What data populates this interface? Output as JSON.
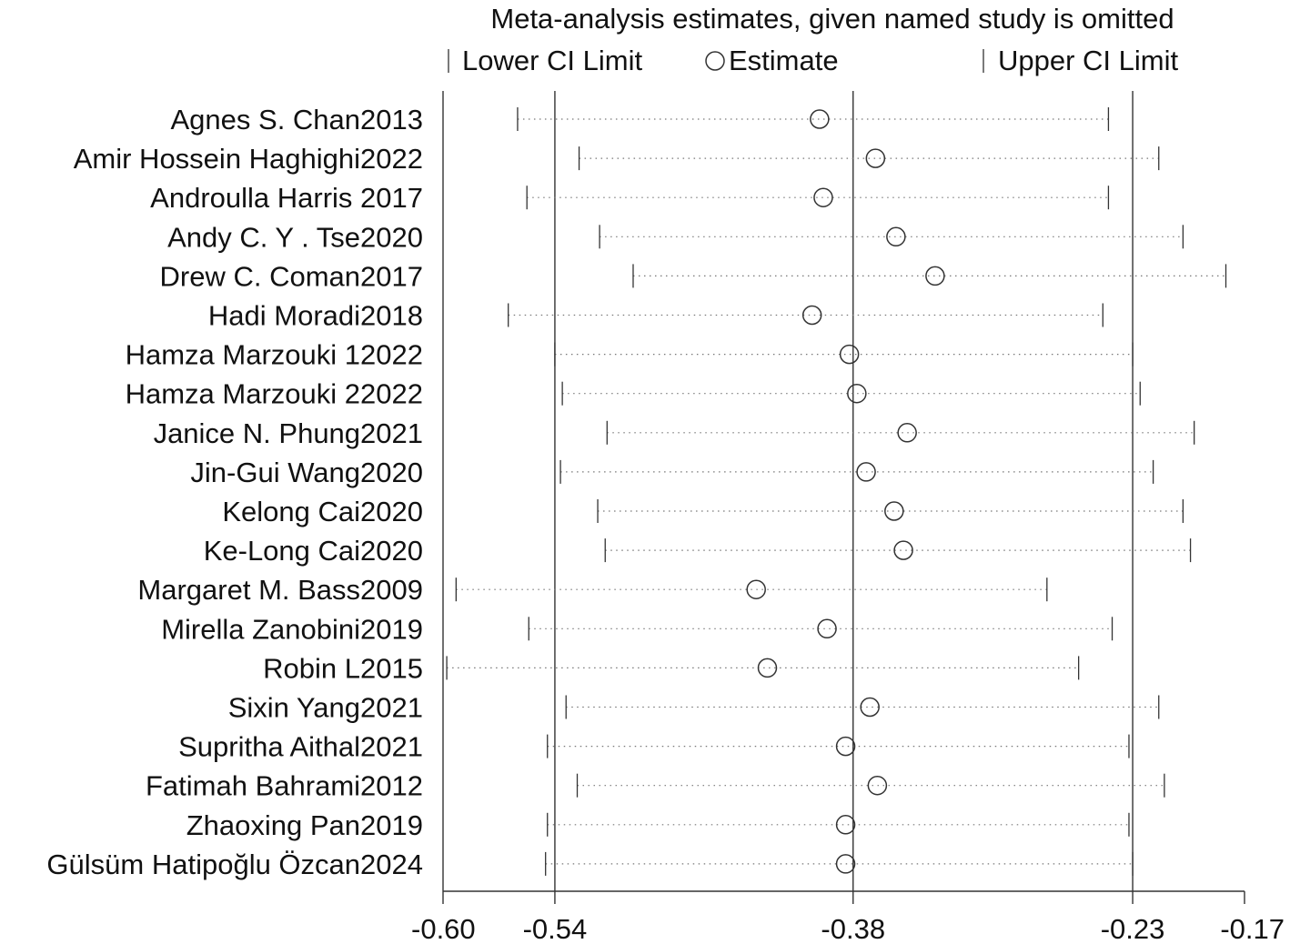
{
  "chart_data": {
    "type": "forest",
    "title": "Meta-analysis estimates, given named study is omitted",
    "legend": {
      "lower": "Lower CI Limit",
      "estimate": "Estimate",
      "upper": "Upper CI Limit",
      "placement": "top"
    },
    "xlim": [
      -0.6,
      -0.17
    ],
    "xticks": [
      {
        "value": -0.6,
        "label": "-0.60"
      },
      {
        "value": -0.54,
        "label": "-0.54"
      },
      {
        "value": -0.38,
        "label": "-0.38"
      },
      {
        "value": -0.23,
        "label": "-0.23"
      },
      {
        "value": -0.17,
        "label": "-0.17"
      }
    ],
    "reference_lines": [
      -0.54,
      -0.38,
      -0.23
    ],
    "studies": [
      {
        "label": "Agnes S. Chan2013",
        "lower": -0.56,
        "estimate": -0.398,
        "upper": -0.243
      },
      {
        "label": "Amir Hossein Haghighi2022",
        "lower": -0.527,
        "estimate": -0.368,
        "upper": -0.216
      },
      {
        "label": "Androulla Harris 2017",
        "lower": -0.555,
        "estimate": -0.396,
        "upper": -0.243
      },
      {
        "label": "Andy C. Y . Tse2020",
        "lower": -0.516,
        "estimate": -0.357,
        "upper": -0.203
      },
      {
        "label": "Drew C. Coman2017",
        "lower": -0.498,
        "estimate": -0.336,
        "upper": -0.18
      },
      {
        "label": "Hadi Moradi2018",
        "lower": -0.565,
        "estimate": -0.402,
        "upper": -0.246
      },
      {
        "label": "Hamza Marzouki 12022",
        "lower": -0.54,
        "estimate": -0.382,
        "upper": -0.23
      },
      {
        "label": "Hamza Marzouki 22022",
        "lower": -0.536,
        "estimate": -0.378,
        "upper": -0.226
      },
      {
        "label": "Janice N. Phung2021",
        "lower": -0.512,
        "estimate": -0.351,
        "upper": -0.197
      },
      {
        "label": "Jin-Gui Wang2020",
        "lower": -0.537,
        "estimate": -0.373,
        "upper": -0.219
      },
      {
        "label": "Kelong Cai2020",
        "lower": -0.517,
        "estimate": -0.358,
        "upper": -0.203
      },
      {
        "label": "Ke-Long Cai2020",
        "lower": -0.513,
        "estimate": -0.353,
        "upper": -0.199
      },
      {
        "label": "Margaret M. Bass2009",
        "lower": -0.593,
        "estimate": -0.432,
        "upper": -0.276
      },
      {
        "label": "Mirella Zanobini2019",
        "lower": -0.554,
        "estimate": -0.394,
        "upper": -0.241
      },
      {
        "label": "Robin L2015",
        "lower": -0.598,
        "estimate": -0.426,
        "upper": -0.259
      },
      {
        "label": "Sixin Yang2021",
        "lower": -0.534,
        "estimate": -0.371,
        "upper": -0.216
      },
      {
        "label": "Supritha Aithal2021",
        "lower": -0.544,
        "estimate": -0.384,
        "upper": -0.232
      },
      {
        "label": "Fatimah Bahrami2012",
        "lower": -0.528,
        "estimate": -0.367,
        "upper": -0.213
      },
      {
        "label": "Zhaoxing Pan2019",
        "lower": -0.544,
        "estimate": -0.384,
        "upper": -0.232
      },
      {
        "label": "Gülsüm Hatipoğlu Özcan2024",
        "lower": -0.545,
        "estimate": -0.384,
        "upper": -0.23
      }
    ]
  }
}
